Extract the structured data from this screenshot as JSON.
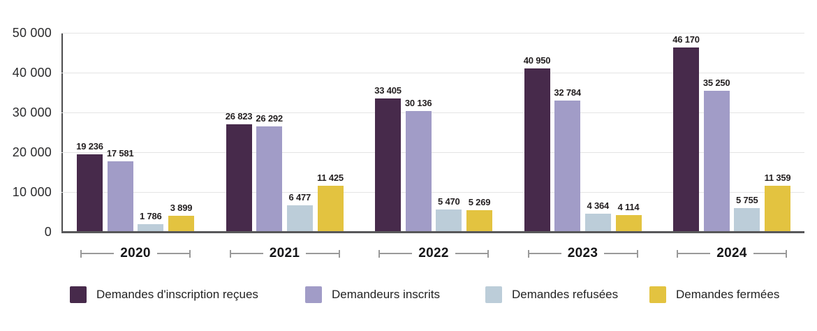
{
  "chart_data": {
    "type": "bar",
    "title": "",
    "categories": [
      "2020",
      "2021",
      "2022",
      "2023",
      "2024"
    ],
    "series": [
      {
        "name": "Demandes d'inscription reçues",
        "color": "#472a4b",
        "values": [
          19236,
          26823,
          33405,
          40950,
          46170
        ],
        "labels": [
          "19 236",
          "26 823",
          "33 405",
          "40 950",
          "46 170"
        ]
      },
      {
        "name": "Demandeurs inscrits",
        "color": "#a19cc7",
        "values": [
          17581,
          26292,
          30136,
          32784,
          35250
        ],
        "labels": [
          "17 581",
          "26 292",
          "30 136",
          "32 784",
          "35 250"
        ]
      },
      {
        "name": "Demandes refusées",
        "color": "#bccdd9",
        "values": [
          1786,
          6477,
          5470,
          4364,
          5755
        ],
        "labels": [
          "1 786",
          "6 477",
          "5 470",
          "4 364",
          "5 755"
        ]
      },
      {
        "name": "Demandes fermées",
        "color": "#e3c340",
        "values": [
          3899,
          11425,
          5269,
          4114,
          11359
        ],
        "labels": [
          "3 899",
          "11 425",
          "5 269",
          "4 114",
          "11 359"
        ]
      }
    ],
    "ylim": [
      0,
      50000
    ],
    "y_ticks": [
      "50 000",
      "40 000",
      "30 000",
      "20 000",
      "10 000",
      "0"
    ],
    "grid": true,
    "xlabel": "",
    "ylabel": "",
    "legend_position": "bottom"
  }
}
